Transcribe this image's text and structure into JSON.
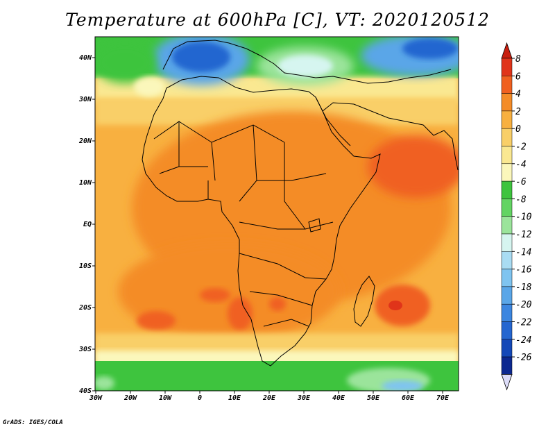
{
  "title": "Temperature at 600hPa [C], VT: 2020120512",
  "credit": "GrADS: IGES/COLA",
  "map": {
    "lon_range": [
      -30,
      75
    ],
    "lat_range": [
      -40,
      45
    ],
    "lon_ticks": [
      "30W",
      "20W",
      "10W",
      "0",
      "10E",
      "20E",
      "30E",
      "40E",
      "50E",
      "60E",
      "70E"
    ],
    "lat_ticks": [
      "40N",
      "30N",
      "20N",
      "10N",
      "EQ",
      "10S",
      "20S",
      "30S",
      "40S"
    ]
  },
  "colorbar": {
    "labels": [
      "8",
      "6",
      "4",
      "2",
      "0",
      "-2",
      "-4",
      "-6",
      "-8",
      "-10",
      "-12",
      "-14",
      "-16",
      "-18",
      "-20",
      "-22",
      "-24",
      "-26"
    ],
    "colors": [
      "#e0341a",
      "#f06020",
      "#f48c28",
      "#f8b040",
      "#f9cf68",
      "#fae891",
      "#fbf7bb",
      "#3ec43e",
      "#63d463",
      "#9be49b",
      "#d6f5f0",
      "#a9dcf3",
      "#7fc4f0",
      "#5aa6e8",
      "#3c86e0",
      "#2466d0",
      "#1448b8",
      "#0c2890"
    ],
    "top_arrow_color": "#c81e0e",
    "bottom_arrow_color": "#dcdcf8"
  }
}
